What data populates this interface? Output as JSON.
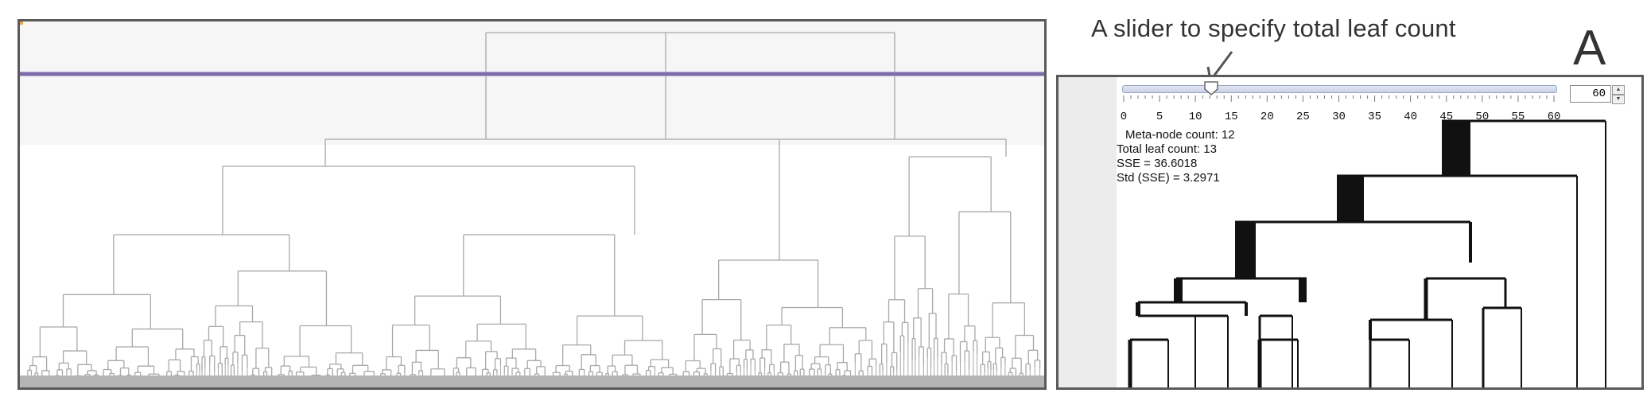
{
  "callout": {
    "text": "A slider to specify total leaf count"
  },
  "panel_label": "A",
  "slider": {
    "value": 12,
    "min": 0,
    "max": 60,
    "tick_labels": [
      "0",
      "5",
      "10",
      "15",
      "20",
      "25",
      "30",
      "35",
      "40",
      "45",
      "50",
      "55",
      "60"
    ],
    "spinbox_value": "60",
    "spin_up_icon": "spin-up-arrow",
    "spin_down_icon": "spin-down-arrow"
  },
  "stats": {
    "meta_node_count": "Meta-node count: 12",
    "total_leaf_count": "Total leaf count: 13",
    "sse": "SSE = 36.6018",
    "std_sse": "Std (SSE) = 3.2971"
  },
  "colors": {
    "dendrogram_line": "#a8a8a8",
    "cut_line": "#7d6ea6",
    "meta_tree_line": "#111111",
    "callout_text": "#333333"
  }
}
